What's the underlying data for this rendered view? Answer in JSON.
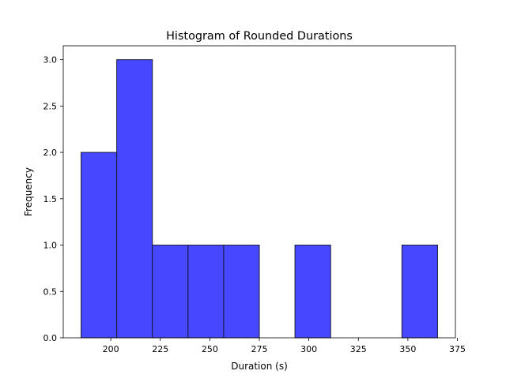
{
  "chart_data": {
    "type": "bar",
    "title": "Histogram of Rounded Durations",
    "xlabel": "Duration (s)",
    "ylabel": "Frequency",
    "xlim": [
      176,
      374
    ],
    "ylim": [
      0,
      3.15
    ],
    "xticks": [
      200,
      225,
      250,
      275,
      300,
      325,
      350,
      375
    ],
    "yticks": [
      0.0,
      0.5,
      1.0,
      1.5,
      2.0,
      2.5,
      3.0
    ],
    "xtick_labels": [
      "200",
      "225",
      "250",
      "275",
      "300",
      "325",
      "350",
      "375"
    ],
    "ytick_labels": [
      "0.0",
      "0.5",
      "1.0",
      "1.5",
      "2.0",
      "2.5",
      "3.0"
    ],
    "bin_edges": [
      185,
      203,
      221,
      239,
      257,
      275,
      293,
      311,
      329,
      347,
      365
    ],
    "values": [
      2,
      3,
      1,
      1,
      1,
      0,
      1,
      0,
      0,
      1
    ],
    "bar_color": "#4747ff",
    "edge_color": "#1a1a33",
    "grid": false
  }
}
